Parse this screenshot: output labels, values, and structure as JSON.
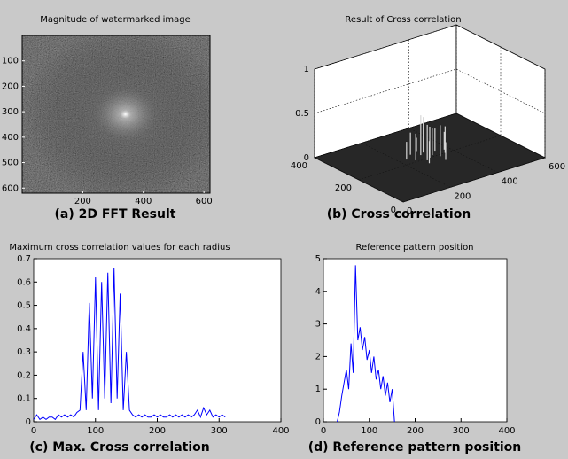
{
  "chart_data": [
    {
      "type": "image",
      "title": "Magnitude of watermarked image",
      "caption": "(a) 2D FFT Result",
      "xlim": [
        0,
        620
      ],
      "ylim": [
        0,
        620
      ],
      "xticks": [
        200,
        400,
        600
      ],
      "yticks": [
        100,
        200,
        300,
        400,
        500,
        600
      ]
    },
    {
      "type": "surface3d",
      "title": "Result of Cross correlation",
      "caption": "(b) Cross correlation",
      "xlim": [
        0,
        600
      ],
      "ylim": [
        0,
        400
      ],
      "zlim": [
        0,
        1
      ],
      "xticks": [
        0,
        200,
        400,
        600
      ],
      "yticks": [
        0,
        200,
        400
      ],
      "zticks": [
        0,
        0.5,
        1
      ],
      "color": "#d8d8d8",
      "x": [
        230,
        250,
        265,
        280,
        290,
        300,
        310,
        320,
        335,
        350,
        365,
        380,
        300,
        270,
        330
      ],
      "y": [
        230,
        210,
        250,
        190,
        230,
        200,
        240,
        210,
        190,
        230,
        200,
        220,
        260,
        170,
        160
      ],
      "z": [
        0.2,
        0.3,
        0.25,
        0.4,
        0.45,
        0.35,
        0.4,
        0.3,
        0.35,
        0.25,
        0.3,
        0.2,
        0.15,
        0.25,
        0.2
      ]
    },
    {
      "type": "line",
      "title": "Maximum cross correlation values for each radius",
      "caption": "(c) Max. Cross correlation",
      "color": "#0000ff",
      "xlim": [
        0,
        400
      ],
      "ylim": [
        0,
        0.7
      ],
      "xticks": [
        0,
        100,
        200,
        300,
        400
      ],
      "yticks": [
        0,
        0.1,
        0.2,
        0.3,
        0.4,
        0.5,
        0.6,
        0.7
      ],
      "x": [
        0,
        5,
        10,
        15,
        20,
        25,
        30,
        35,
        40,
        45,
        50,
        55,
        60,
        65,
        70,
        75,
        80,
        85,
        90,
        95,
        100,
        105,
        110,
        115,
        120,
        125,
        130,
        135,
        140,
        145,
        150,
        155,
        160,
        165,
        170,
        175,
        180,
        185,
        190,
        195,
        200,
        205,
        210,
        215,
        220,
        225,
        230,
        235,
        240,
        245,
        250,
        255,
        260,
        265,
        270,
        275,
        280,
        285,
        290,
        295,
        300,
        305,
        310
      ],
      "values": [
        0.01,
        0.03,
        0.01,
        0.02,
        0.01,
        0.02,
        0.02,
        0.01,
        0.03,
        0.02,
        0.03,
        0.02,
        0.03,
        0.02,
        0.04,
        0.05,
        0.3,
        0.05,
        0.51,
        0.1,
        0.62,
        0.05,
        0.6,
        0.1,
        0.64,
        0.08,
        0.66,
        0.1,
        0.55,
        0.05,
        0.3,
        0.05,
        0.03,
        0.02,
        0.03,
        0.02,
        0.03,
        0.02,
        0.02,
        0.03,
        0.02,
        0.03,
        0.02,
        0.02,
        0.03,
        0.02,
        0.03,
        0.02,
        0.03,
        0.02,
        0.03,
        0.02,
        0.03,
        0.05,
        0.02,
        0.06,
        0.03,
        0.05,
        0.02,
        0.03,
        0.02,
        0.03,
        0.02
      ]
    },
    {
      "type": "line",
      "title": "Reference pattern position",
      "caption": "(d) Reference pattern position",
      "color": "#0000ff",
      "xlim": [
        0,
        400
      ],
      "ylim": [
        0,
        5
      ],
      "xticks": [
        0,
        100,
        200,
        300,
        400
      ],
      "yticks": [
        0,
        1,
        2,
        3,
        4,
        5
      ],
      "x": [
        30,
        35,
        40,
        45,
        50,
        55,
        60,
        65,
        70,
        75,
        80,
        85,
        90,
        95,
        100,
        105,
        110,
        115,
        120,
        125,
        130,
        135,
        140,
        145,
        150,
        155
      ],
      "values": [
        0,
        0.3,
        0.8,
        1.2,
        1.6,
        1.0,
        2.4,
        1.5,
        4.8,
        2.5,
        2.9,
        2.2,
        2.6,
        1.9,
        2.2,
        1.5,
        2.0,
        1.3,
        1.6,
        1.0,
        1.4,
        0.8,
        1.2,
        0.6,
        1.0,
        0
      ]
    }
  ]
}
